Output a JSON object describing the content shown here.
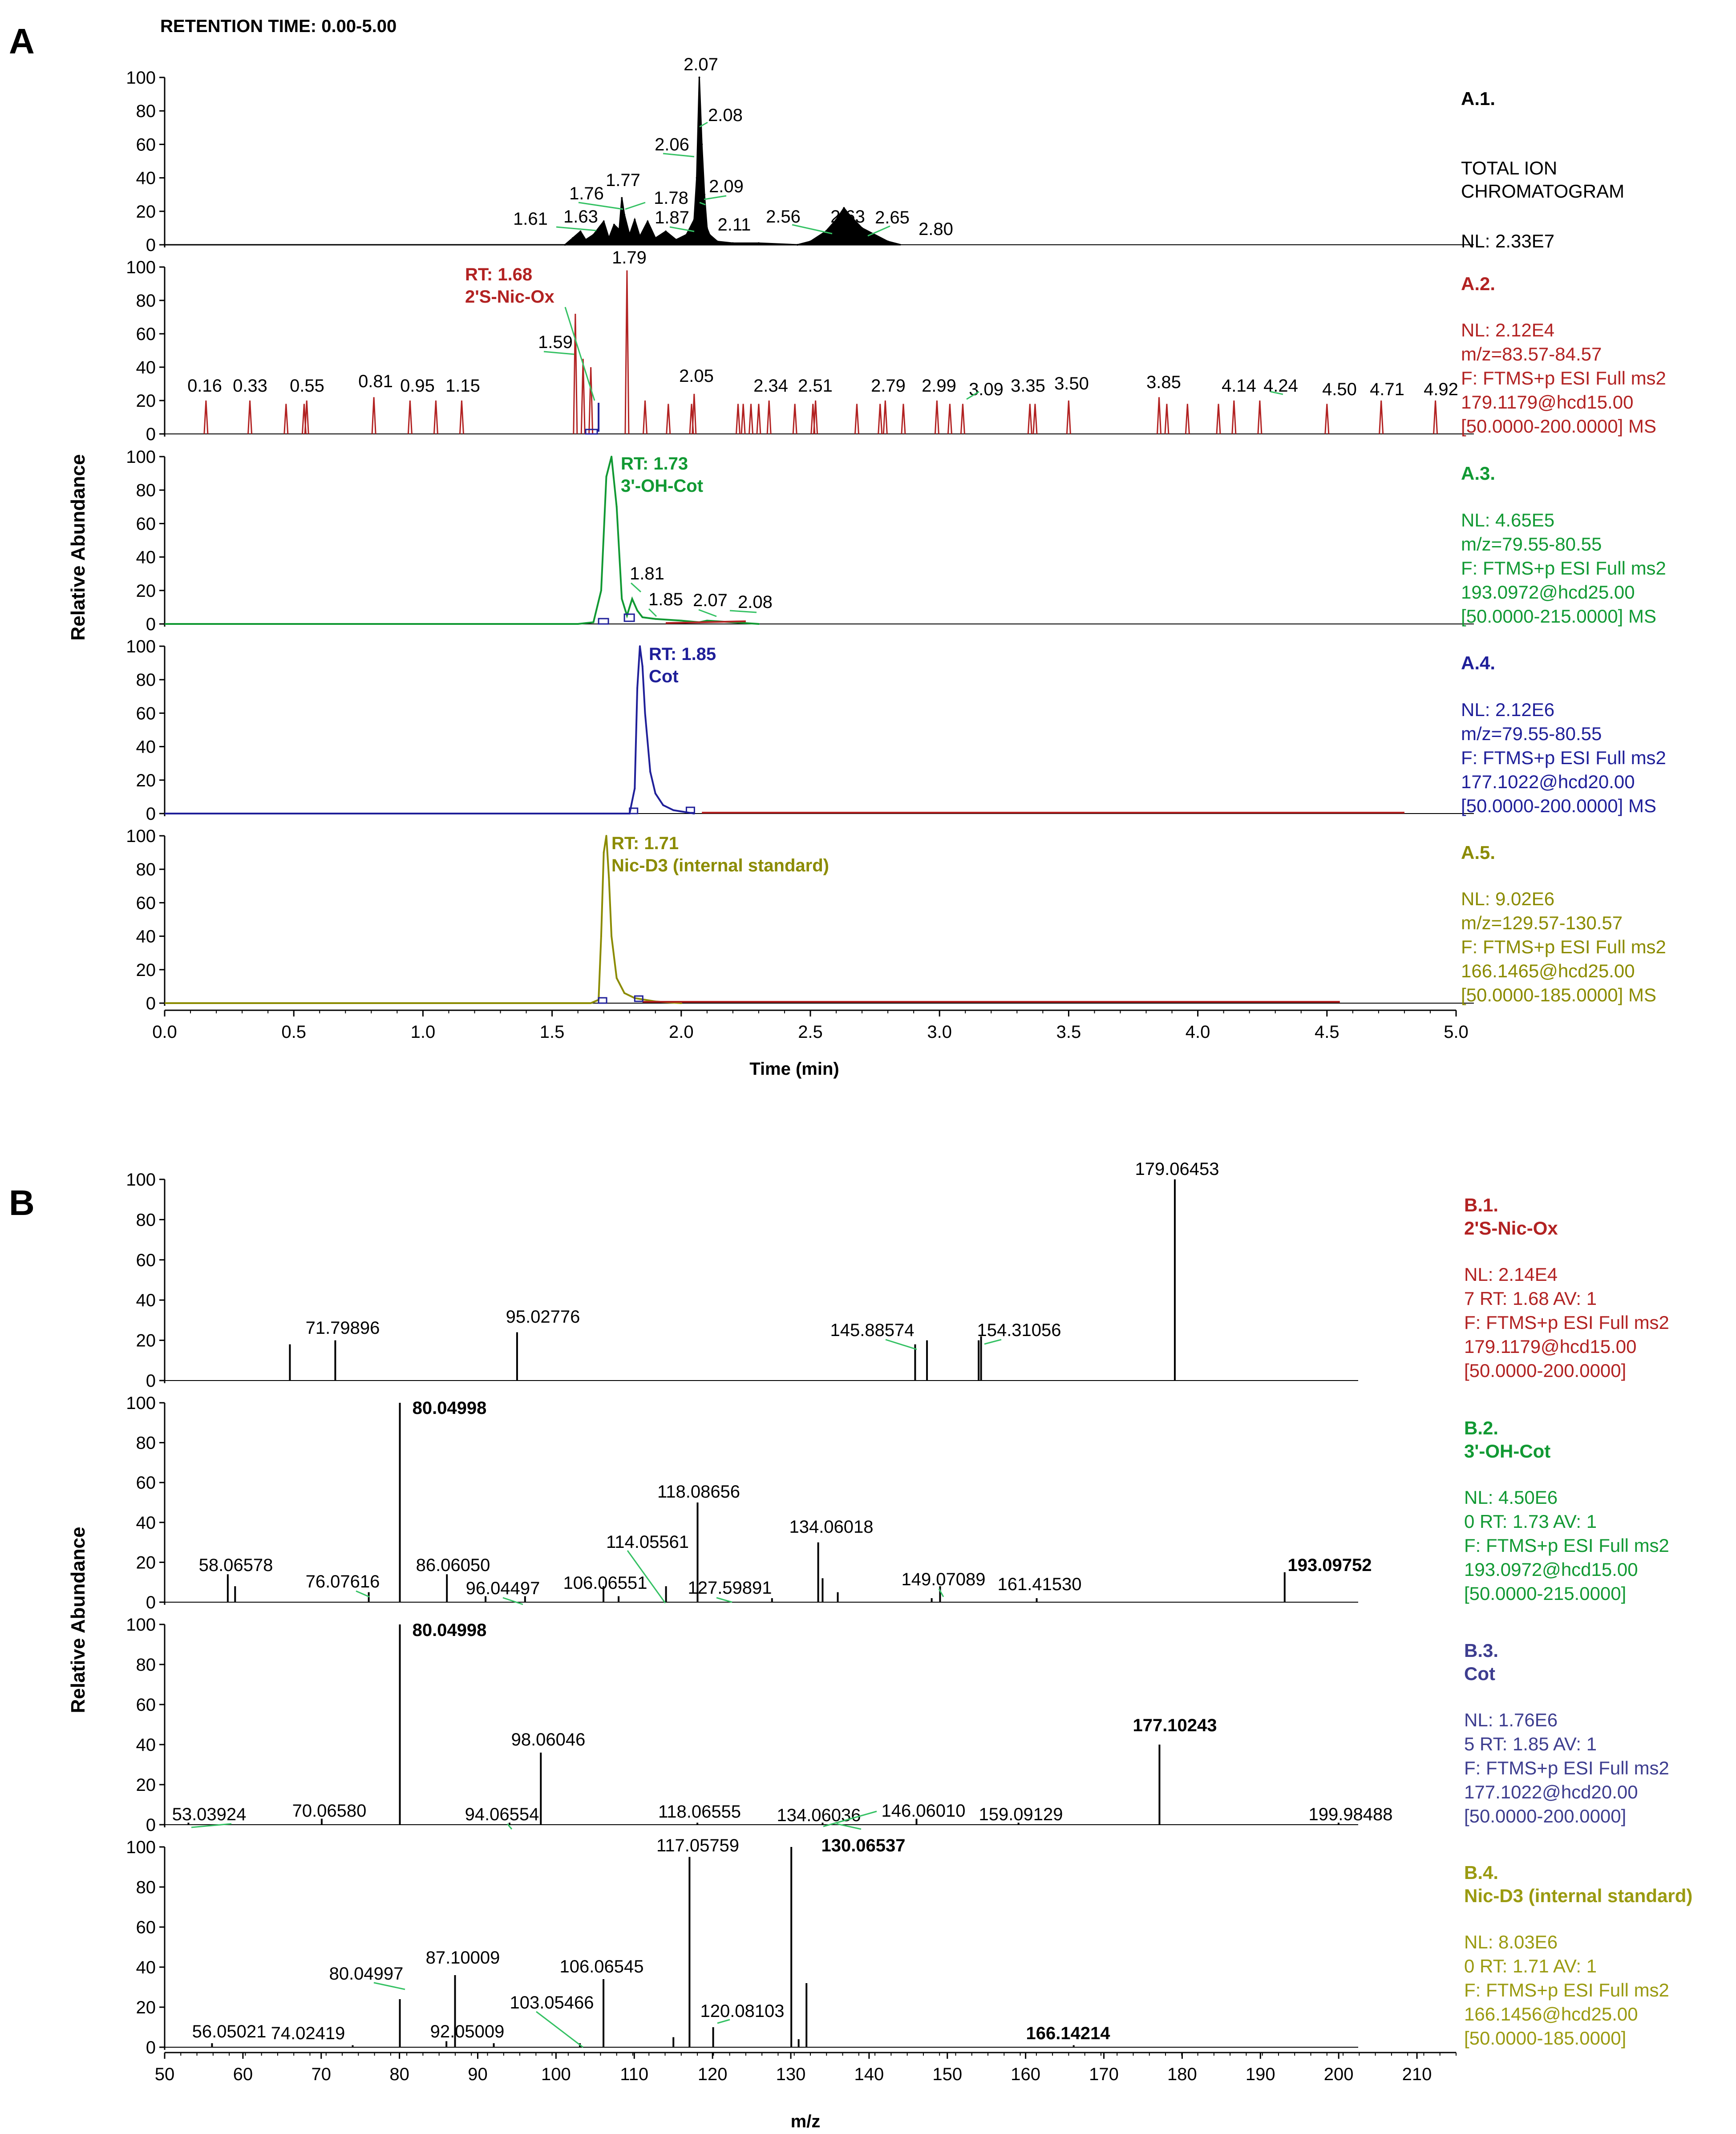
{
  "colors": {
    "black": "#000000",
    "red": "#b22222",
    "green": "#119933",
    "blue": "#1f1f99",
    "olive": "#8b8b00",
    "callout": "#34c163",
    "gold": "#9a9a10",
    "b3": "#3d3d8f"
  },
  "panelA": {
    "letter": "A",
    "header": "RETENTION TIME: 0.00-5.00",
    "ylabel": "Relative Abundance",
    "xlabel": "Time (min)",
    "xticks": [
      "0.0",
      "0.5",
      "1.0",
      "1.5",
      "2.0",
      "2.5",
      "3.0",
      "3.5",
      "4.0",
      "4.5",
      "5.0"
    ],
    "yticks": [
      "0",
      "20",
      "40",
      "60",
      "80",
      "100"
    ]
  },
  "panelB": {
    "letter": "B",
    "ylabel": "Relative Abundance",
    "xlabel": "m/z",
    "xticks": [
      "50",
      "60",
      "70",
      "80",
      "90",
      "100",
      "110",
      "120",
      "130",
      "140",
      "150",
      "160",
      "170",
      "180",
      "190",
      "200",
      "210"
    ],
    "yticks": [
      "0",
      "20",
      "40",
      "60",
      "80",
      "100"
    ]
  },
  "chart_data": [
    {
      "id": "A.1",
      "type": "line",
      "title": "TOTAL ION CHROMATOGRAM",
      "xlabel": "Time (min)",
      "ylabel": "Relative Abundance",
      "xlim": [
        0,
        5
      ],
      "ylim": [
        0,
        100
      ],
      "color": "black",
      "x": [
        1.55,
        1.58,
        1.61,
        1.63,
        1.66,
        1.7,
        1.72,
        1.74,
        1.76,
        1.77,
        1.78,
        1.8,
        1.82,
        1.84,
        1.87,
        1.9,
        1.94,
        1.98,
        2.02,
        2.05,
        2.06,
        2.07,
        2.08,
        2.09,
        2.1,
        2.11,
        2.14,
        2.2,
        2.3,
        2.45,
        2.5,
        2.56,
        2.6,
        2.63,
        2.65,
        2.7,
        2.8
      ],
      "values": [
        0,
        4,
        8,
        3,
        6,
        14,
        4,
        12,
        9,
        28,
        18,
        6,
        15,
        5,
        14,
        4,
        8,
        3,
        6,
        15,
        40,
        100,
        60,
        30,
        10,
        6,
        2,
        1,
        1,
        0,
        2,
        8,
        15,
        22,
        18,
        10,
        2
      ],
      "peak_labels": [
        "2.07",
        "2.08",
        "2.06",
        "1.76",
        "1.77",
        "1.78",
        "2.09",
        "1.61",
        "1.63",
        "1.87",
        "2.11",
        "2.56",
        "2.63",
        "2.65",
        "2.80"
      ],
      "info": {
        "id_label": "A.1.",
        "name_lines": [
          "TOTAL ION",
          "CHROMATOGRAM"
        ],
        "lines": [
          "NL: 2.33E7"
        ]
      }
    },
    {
      "id": "A.2",
      "type": "line",
      "xlim": [
        0,
        5
      ],
      "ylim": [
        0,
        100
      ],
      "color": "red",
      "annotation": {
        "rt": "RT: 1.68",
        "compound": "2'S-Nic-Ox"
      },
      "spikes": [
        [
          0.16,
          20
        ],
        [
          0.33,
          20
        ],
        [
          0.47,
          18
        ],
        [
          0.54,
          18
        ],
        [
          0.55,
          20
        ],
        [
          0.81,
          22
        ],
        [
          0.95,
          20
        ],
        [
          1.05,
          20
        ],
        [
          1.15,
          20
        ],
        [
          1.59,
          72
        ],
        [
          1.62,
          45
        ],
        [
          1.65,
          40
        ],
        [
          1.79,
          98
        ],
        [
          1.86,
          20
        ],
        [
          1.95,
          18
        ],
        [
          2.04,
          18
        ],
        [
          2.05,
          24
        ],
        [
          2.22,
          18
        ],
        [
          2.24,
          18
        ],
        [
          2.27,
          18
        ],
        [
          2.3,
          18
        ],
        [
          2.34,
          20
        ],
        [
          2.44,
          18
        ],
        [
          2.51,
          18
        ],
        [
          2.52,
          20
        ],
        [
          2.68,
          18
        ],
        [
          2.77,
          18
        ],
        [
          2.79,
          20
        ],
        [
          2.86,
          18
        ],
        [
          2.99,
          20
        ],
        [
          3.04,
          18
        ],
        [
          3.09,
          18
        ],
        [
          3.35,
          18
        ],
        [
          3.37,
          18
        ],
        [
          3.5,
          20
        ],
        [
          3.85,
          22
        ],
        [
          3.88,
          18
        ],
        [
          3.96,
          18
        ],
        [
          4.08,
          18
        ],
        [
          4.14,
          20
        ],
        [
          4.24,
          20
        ],
        [
          4.5,
          18
        ],
        [
          4.71,
          20
        ],
        [
          4.92,
          20
        ]
      ],
      "peak_labels": [
        "1.79",
        "1.59",
        "0.16",
        "0.33",
        "0.55",
        "0.81",
        "0.95",
        "1.15",
        "2.05",
        "2.34",
        "2.51",
        "2.79",
        "2.99",
        "3.09",
        "3.35",
        "3.50",
        "3.85",
        "4.14",
        "4.24",
        "4.50",
        "4.71",
        "4.92"
      ],
      "info": {
        "id_label": "A.2.",
        "lines": [
          "NL: 2.12E4",
          "m/z=83.57-84.57",
          "F: FTMS+p ESI Full ms2",
          "179.1179@hcd15.00",
          "[50.0000-200.0000] MS"
        ]
      }
    },
    {
      "id": "A.3",
      "type": "line",
      "xlim": [
        0,
        5
      ],
      "ylim": [
        0,
        100
      ],
      "color": "green",
      "annotation": {
        "rt": "RT: 1.73",
        "compound": "3'-OH-Cot"
      },
      "x": [
        1.6,
        1.66,
        1.69,
        1.71,
        1.73,
        1.75,
        1.77,
        1.79,
        1.81,
        1.83,
        1.85,
        1.9,
        2.0,
        2.07,
        2.1,
        2.3
      ],
      "values": [
        0,
        1,
        20,
        88,
        100,
        70,
        15,
        5,
        15,
        8,
        4,
        3,
        2,
        1,
        2,
        0
      ],
      "peak_labels": [
        "1.81",
        "1.85",
        "2.07",
        "2.08"
      ],
      "info": {
        "id_label": "A.3.",
        "lines": [
          "NL: 4.65E5",
          "m/z=79.55-80.55",
          "F: FTMS+p ESI Full ms2",
          "193.0972@hcd25.00",
          "[50.0000-215.0000] MS"
        ]
      }
    },
    {
      "id": "A.4",
      "type": "line",
      "xlim": [
        0,
        5
      ],
      "ylim": [
        0,
        100
      ],
      "color": "blue",
      "annotation": {
        "rt": "RT: 1.85",
        "compound": "Cot"
      },
      "x": [
        1.7,
        1.8,
        1.82,
        1.83,
        1.84,
        1.85,
        1.86,
        1.88,
        1.9,
        1.93,
        1.97,
        2.05
      ],
      "values": [
        0,
        0,
        15,
        75,
        100,
        88,
        60,
        25,
        12,
        5,
        2,
        0
      ],
      "info": {
        "id_label": "A.4.",
        "lines": [
          "NL: 2.12E6",
          "m/z=79.55-80.55",
          "F: FTMS+p ESI Full ms2",
          "177.1022@hcd20.00",
          "[50.0000-200.0000] MS"
        ]
      }
    },
    {
      "id": "A.5",
      "type": "line",
      "xlim": [
        0,
        5
      ],
      "ylim": [
        0,
        100
      ],
      "color": "olive",
      "annotation": {
        "rt": "RT: 1.71",
        "compound": "Nic-D3 (internal standard)"
      },
      "x": [
        1.65,
        1.68,
        1.69,
        1.7,
        1.71,
        1.72,
        1.73,
        1.75,
        1.78,
        1.82,
        1.9,
        2.0
      ],
      "values": [
        0,
        2,
        40,
        90,
        100,
        75,
        40,
        15,
        6,
        3,
        1,
        0
      ],
      "info": {
        "id_label": "A.5.",
        "lines": [
          "NL: 9.02E6",
          "m/z=129.57-130.57",
          "F: FTMS+p ESI Full ms2",
          "166.1465@hcd25.00",
          "[50.0000-185.0000] MS"
        ]
      }
    },
    {
      "id": "B.1",
      "type": "bar",
      "xlim": [
        50,
        215
      ],
      "ylim": [
        0,
        100
      ],
      "color": "black",
      "peaks": [
        [
          66.0,
          18
        ],
        [
          71.79896,
          20
        ],
        [
          95.02776,
          24
        ],
        [
          145.88574,
          18
        ],
        [
          147.4,
          20
        ],
        [
          154.31056,
          22
        ],
        [
          154.0,
          20
        ],
        [
          179.06453,
          100
        ]
      ],
      "peak_labels": [
        "179.06453",
        "71.79896",
        "95.02776",
        "145.88574",
        "154.31056"
      ],
      "info": {
        "id_label": "B.1.",
        "name": "2'S-Nic-Ox",
        "lines": [
          "NL: 2.14E4",
          "7 RT: 1.68 AV: 1",
          "F: FTMS+p ESI Full ms2",
          "179.1179@hcd15.00",
          "[50.0000-200.0000]"
        ]
      }
    },
    {
      "id": "B.2",
      "type": "bar",
      "xlim": [
        50,
        215
      ],
      "ylim": [
        0,
        100
      ],
      "color": "black",
      "peaks": [
        [
          58.06578,
          14
        ],
        [
          59.0,
          8
        ],
        [
          76.07616,
          5
        ],
        [
          80.04998,
          100
        ],
        [
          86.0605,
          14
        ],
        [
          91.0,
          3
        ],
        [
          96.04497,
          3
        ],
        [
          106.06551,
          8
        ],
        [
          108.0,
          3
        ],
        [
          114.05561,
          8
        ],
        [
          118.08656,
          50
        ],
        [
          127.59891,
          2
        ],
        [
          133.5,
          30
        ],
        [
          134.06018,
          12
        ],
        [
          136.0,
          5
        ],
        [
          149.07089,
          8
        ],
        [
          148.0,
          2
        ],
        [
          161.4153,
          2
        ],
        [
          193.09752,
          15
        ]
      ],
      "peak_labels": [
        "80.04998",
        "118.08656",
        "134.06018",
        "114.05561",
        "58.06578",
        "86.06050",
        "76.07616",
        "96.04497",
        "106.06551",
        "127.59891",
        "149.07089",
        "161.41530",
        "193.09752"
      ],
      "info": {
        "id_label": "B.2.",
        "name": "3'-OH-Cot",
        "lines": [
          "NL: 4.50E6",
          "0 RT: 1.73 AV: 1",
          "F: FTMS+p ESI Full ms2",
          "193.0972@hcd15.00",
          "[50.0000-215.0000]"
        ]
      }
    },
    {
      "id": "B.3",
      "type": "bar",
      "xlim": [
        50,
        215
      ],
      "ylim": [
        0,
        100
      ],
      "color": "black",
      "peaks": [
        [
          53.03924,
          1
        ],
        [
          70.0658,
          3
        ],
        [
          80.04998,
          100
        ],
        [
          94.06554,
          1
        ],
        [
          98.06046,
          36
        ],
        [
          118.06555,
          1
        ],
        [
          134.06036,
          1
        ],
        [
          146.0601,
          3
        ],
        [
          159.09129,
          1
        ],
        [
          177.10243,
          40
        ],
        [
          199.98488,
          1
        ]
      ],
      "peak_labels": [
        "80.04998",
        "98.06046",
        "177.10243",
        "53.03924",
        "70.06580",
        "94.06554",
        "118.06555",
        "134.06036",
        "146.06010",
        "159.09129",
        "199.98488"
      ],
      "info": {
        "id_label": "B.3.",
        "name": "Cot",
        "lines": [
          "NL: 1.76E6",
          "5 RT: 1.85 AV: 1",
          "F: FTMS+p ESI Full ms2",
          "177.1022@hcd20.00",
          "[50.0000-200.0000]"
        ]
      }
    },
    {
      "id": "B.4",
      "type": "bar",
      "xlim": [
        50,
        215
      ],
      "ylim": [
        0,
        100
      ],
      "color": "black",
      "peaks": [
        [
          56.05021,
          2
        ],
        [
          74.02419,
          1
        ],
        [
          80.04997,
          24
        ],
        [
          86.0,
          3
        ],
        [
          87.10009,
          36
        ],
        [
          92.05009,
          2
        ],
        [
          103.05466,
          2
        ],
        [
          106.06545,
          34
        ],
        [
          115.0,
          5
        ],
        [
          117.05759,
          95
        ],
        [
          120.08103,
          10
        ],
        [
          130.06537,
          100
        ],
        [
          131.0,
          4
        ],
        [
          132.0,
          32
        ],
        [
          166.14214,
          1
        ]
      ],
      "peak_labels": [
        "117.05759",
        "130.06537",
        "87.10009",
        "80.04997",
        "106.06545",
        "103.05466",
        "120.08103",
        "56.05021",
        "74.02419",
        "92.05009",
        "166.14214"
      ],
      "info": {
        "id_label": "B.4.",
        "name": "Nic-D3 (internal standard)",
        "lines": [
          "NL: 8.03E6",
          "0 RT: 1.71 AV: 1",
          "F: FTMS+p ESI Full ms2",
          "166.1456@hcd25.00",
          "[50.0000-185.0000]"
        ]
      }
    }
  ]
}
